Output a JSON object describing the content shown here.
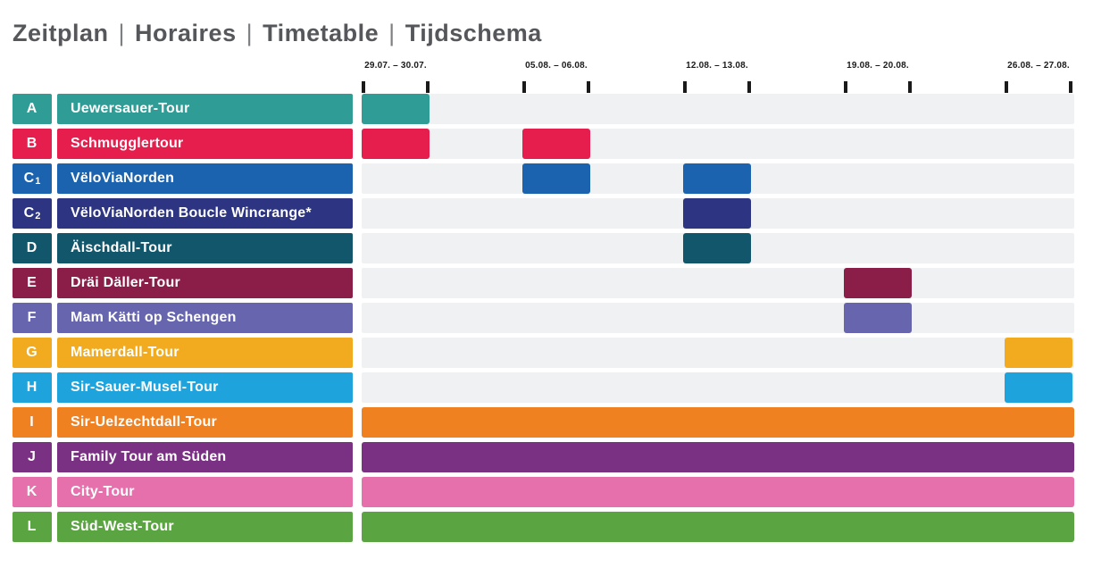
{
  "title": {
    "parts": [
      "Zeitplan",
      "Horaires",
      "Timetable",
      "Tijdschema"
    ],
    "separator": "|",
    "color": "#55575B"
  },
  "timeline": {
    "weekend_labels": [
      "29.07. – 30.07.",
      "05.08. – 06.08.",
      "12.08. – 13.08.",
      "19.08. – 20.08.",
      "26.08. – 27.08."
    ],
    "tick_color": "#1A1A1A"
  },
  "rows": [
    {
      "code": "A",
      "sub": "",
      "name": "Uewersauer-Tour",
      "color": "#2F9C95",
      "weekends": [
        0
      ]
    },
    {
      "code": "B",
      "sub": "",
      "name": "Schmugglertour",
      "color": "#E51E4D",
      "weekends": [
        0,
        1
      ]
    },
    {
      "code": "C",
      "sub": "1",
      "name": "VëloViaNorden",
      "color": "#1B63AE",
      "weekends": [
        1,
        2
      ]
    },
    {
      "code": "C",
      "sub": "2",
      "name": "VëloViaNorden Boucle Wincrange*",
      "color": "#2D3583",
      "weekends": [
        2
      ]
    },
    {
      "code": "D",
      "sub": "",
      "name": "Äischdall-Tour",
      "color": "#12566B",
      "weekends": [
        2
      ]
    },
    {
      "code": "E",
      "sub": "",
      "name": "Dräi Däller-Tour",
      "color": "#8B1D49",
      "weekends": [
        3
      ]
    },
    {
      "code": "F",
      "sub": "",
      "name": "Mam Kätti op Schengen",
      "color": "#6765AE",
      "weekends": [
        3
      ]
    },
    {
      "code": "G",
      "sub": "",
      "name": "Mamerdall-Tour",
      "color": "#F2AB1E",
      "weekends": [
        4
      ]
    },
    {
      "code": "H",
      "sub": "",
      "name": "Sir-Sauer-Musel-Tour",
      "color": "#1FA3DC",
      "weekends": [
        4
      ]
    },
    {
      "code": "I",
      "sub": "",
      "name": "Sir-Uelzechtdall-Tour",
      "color": "#F08121",
      "weekends": "all"
    },
    {
      "code": "J",
      "sub": "",
      "name": "Family Tour am Süden",
      "color": "#7B3183",
      "weekends": "all"
    },
    {
      "code": "K",
      "sub": "",
      "name": "City-Tour",
      "color": "#E570AB",
      "weekends": "all"
    },
    {
      "code": "L",
      "sub": "",
      "name": "Süd-West-Tour",
      "color": "#5BA442",
      "weekends": "all"
    }
  ],
  "colors": {
    "track_background": "#EFF1F3",
    "title_text": "#55575B",
    "tick": "#1A1A1A"
  },
  "chart_data": {
    "type": "bar",
    "subtype": "gantt-timetable",
    "title": "Zeitplan | Horaires | Timetable | Tijdschema",
    "xlabel": "",
    "ylabel": "",
    "x_tick_labels": [
      "29.07. – 30.07.",
      "05.08. – 06.08.",
      "12.08. – 13.08.",
      "19.08. – 20.08.",
      "26.08. – 27.08."
    ],
    "grid": false,
    "legend_position": "none",
    "rows": [
      {
        "code": "A",
        "tour": "Uewersauer-Tour",
        "color": "#2F9C95",
        "continuous": false,
        "active_weekends": [
          "29.07. – 30.07."
        ]
      },
      {
        "code": "B",
        "tour": "Schmugglertour",
        "color": "#E51E4D",
        "continuous": false,
        "active_weekends": [
          "29.07. – 30.07.",
          "05.08. – 06.08."
        ]
      },
      {
        "code": "C1",
        "tour": "VëloViaNorden",
        "color": "#1B63AE",
        "continuous": false,
        "active_weekends": [
          "05.08. – 06.08.",
          "12.08. – 13.08."
        ]
      },
      {
        "code": "C2",
        "tour": "VëloViaNorden Boucle Wincrange*",
        "color": "#2D3583",
        "continuous": false,
        "active_weekends": [
          "12.08. – 13.08."
        ]
      },
      {
        "code": "D",
        "tour": "Äischdall-Tour",
        "color": "#12566B",
        "continuous": false,
        "active_weekends": [
          "12.08. – 13.08."
        ]
      },
      {
        "code": "E",
        "tour": "Dräi Däller-Tour",
        "color": "#8B1D49",
        "continuous": false,
        "active_weekends": [
          "19.08. – 20.08."
        ]
      },
      {
        "code": "F",
        "tour": "Mam Kätti op Schengen",
        "color": "#6765AE",
        "continuous": false,
        "active_weekends": [
          "19.08. – 20.08."
        ]
      },
      {
        "code": "G",
        "tour": "Mamerdall-Tour",
        "color": "#F2AB1E",
        "continuous": false,
        "active_weekends": [
          "26.08. – 27.08."
        ]
      },
      {
        "code": "H",
        "tour": "Sir-Sauer-Musel-Tour",
        "color": "#1FA3DC",
        "continuous": false,
        "active_weekends": [
          "26.08. – 27.08."
        ]
      },
      {
        "code": "I",
        "tour": "Sir-Uelzechtdall-Tour",
        "color": "#F08121",
        "continuous": true,
        "active_weekends": [
          "29.07. – 30.07.",
          "05.08. – 06.08.",
          "12.08. – 13.08.",
          "19.08. – 20.08.",
          "26.08. – 27.08."
        ]
      },
      {
        "code": "J",
        "tour": "Family Tour am Süden",
        "color": "#7B3183",
        "continuous": true,
        "active_weekends": [
          "29.07. – 30.07.",
          "05.08. – 06.08.",
          "12.08. – 13.08.",
          "19.08. – 20.08.",
          "26.08. – 27.08."
        ]
      },
      {
        "code": "K",
        "tour": "City-Tour",
        "color": "#E570AB",
        "continuous": true,
        "active_weekends": [
          "29.07. – 30.07.",
          "05.08. – 06.08.",
          "12.08. – 13.08.",
          "19.08. – 20.08.",
          "26.08. – 27.08."
        ]
      },
      {
        "code": "L",
        "tour": "Süd-West-Tour",
        "color": "#5BA442",
        "continuous": true,
        "active_weekends": [
          "29.07. – 30.07.",
          "05.08. – 06.08.",
          "12.08. – 13.08.",
          "19.08. – 20.08.",
          "26.08. – 27.08."
        ]
      }
    ]
  }
}
